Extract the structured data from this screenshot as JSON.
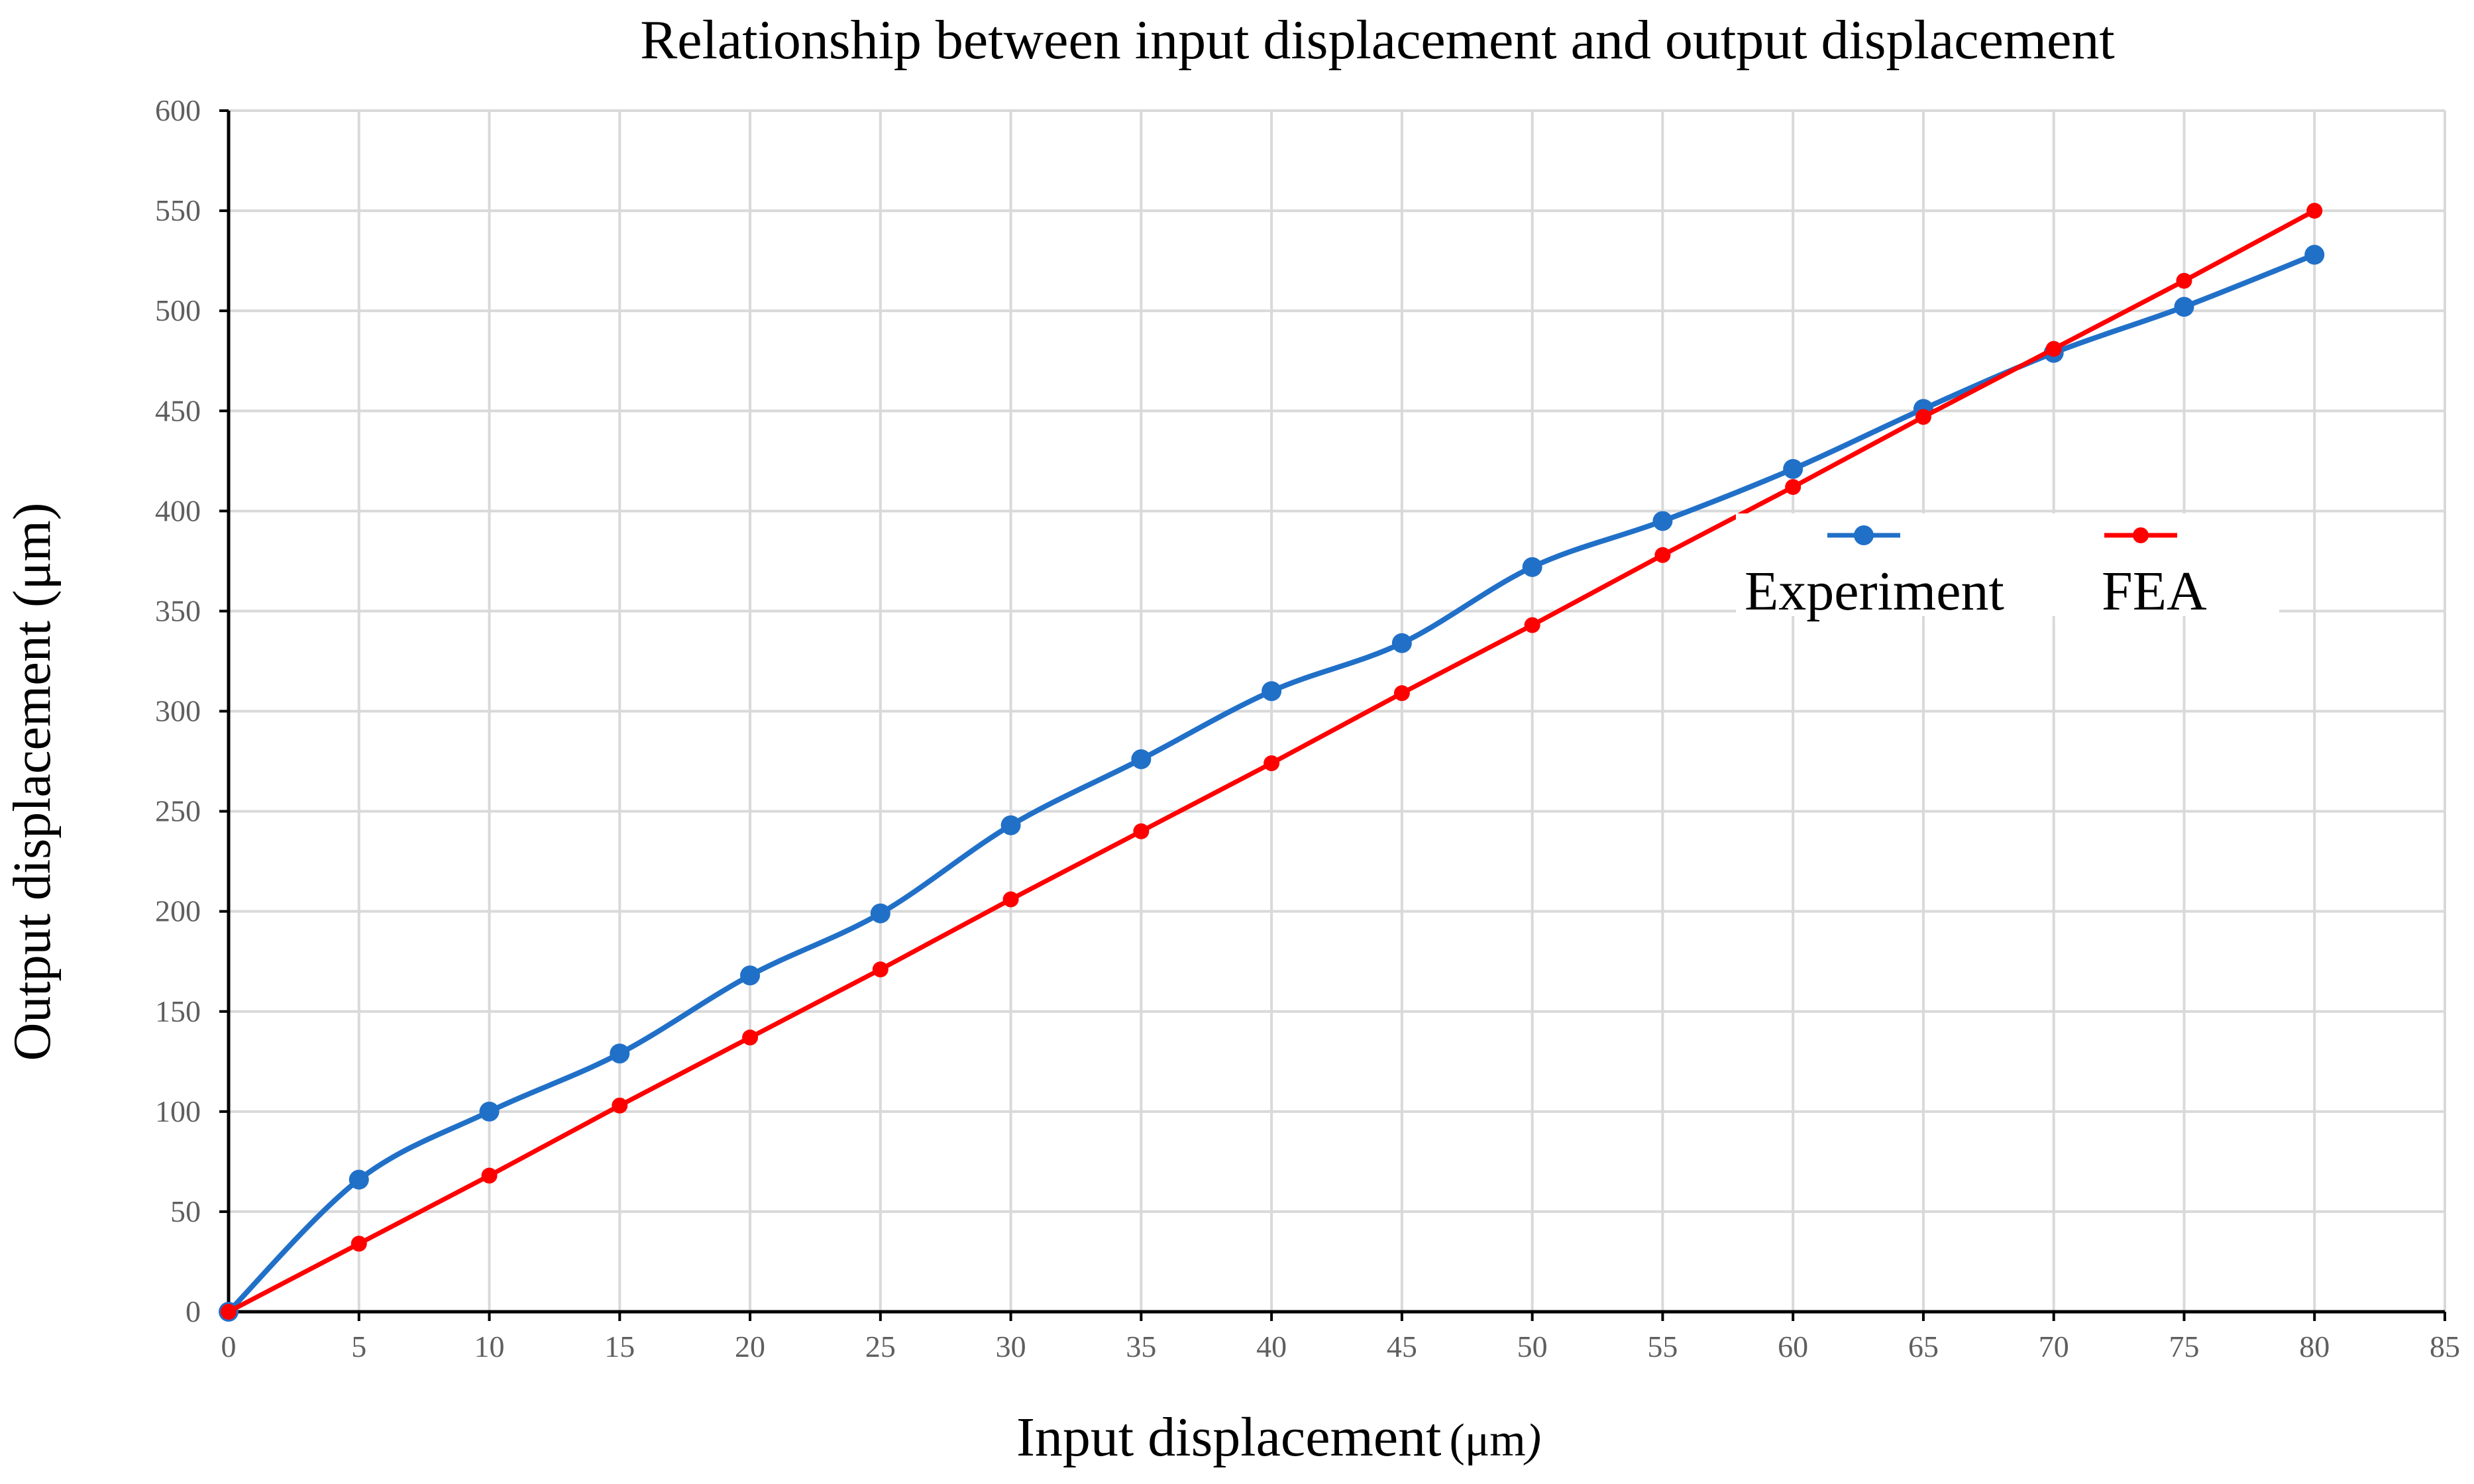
{
  "chart_data": {
    "type": "line",
    "title": "Relationship between input displacement and output displacement",
    "xlabel": "Input displacement",
    "xlabel_unit": "(μm",
    "xlabel_unit_close": ")",
    "ylabel": "Output displacement (μm)",
    "xlim": [
      0,
      85
    ],
    "ylim": [
      0,
      600
    ],
    "xticks": [
      0,
      5,
      10,
      15,
      20,
      25,
      30,
      35,
      40,
      45,
      50,
      55,
      60,
      65,
      70,
      75,
      80,
      85
    ],
    "yticks": [
      0,
      50,
      100,
      150,
      200,
      250,
      300,
      350,
      400,
      450,
      500,
      550,
      600
    ],
    "grid": true,
    "legend_position": "right-middle",
    "series": [
      {
        "name": "Experiment",
        "color": "#2170c8",
        "smooth": true,
        "x": [
          0,
          5,
          10,
          15,
          20,
          25,
          30,
          35,
          40,
          45,
          50,
          55,
          60,
          65,
          70,
          75,
          80
        ],
        "values": [
          0,
          66,
          100,
          129,
          168,
          199,
          243,
          276,
          310,
          334,
          372,
          395,
          421,
          451,
          479,
          502,
          528
        ]
      },
      {
        "name": "FEA",
        "color": "#ff0000",
        "smooth": false,
        "x": [
          0,
          5,
          10,
          15,
          20,
          25,
          30,
          35,
          40,
          45,
          50,
          55,
          60,
          65,
          70,
          75,
          80
        ],
        "values": [
          0,
          34,
          68,
          103,
          137,
          171,
          206,
          240,
          274,
          309,
          343,
          378,
          412,
          447,
          481,
          515,
          550
        ]
      }
    ]
  }
}
